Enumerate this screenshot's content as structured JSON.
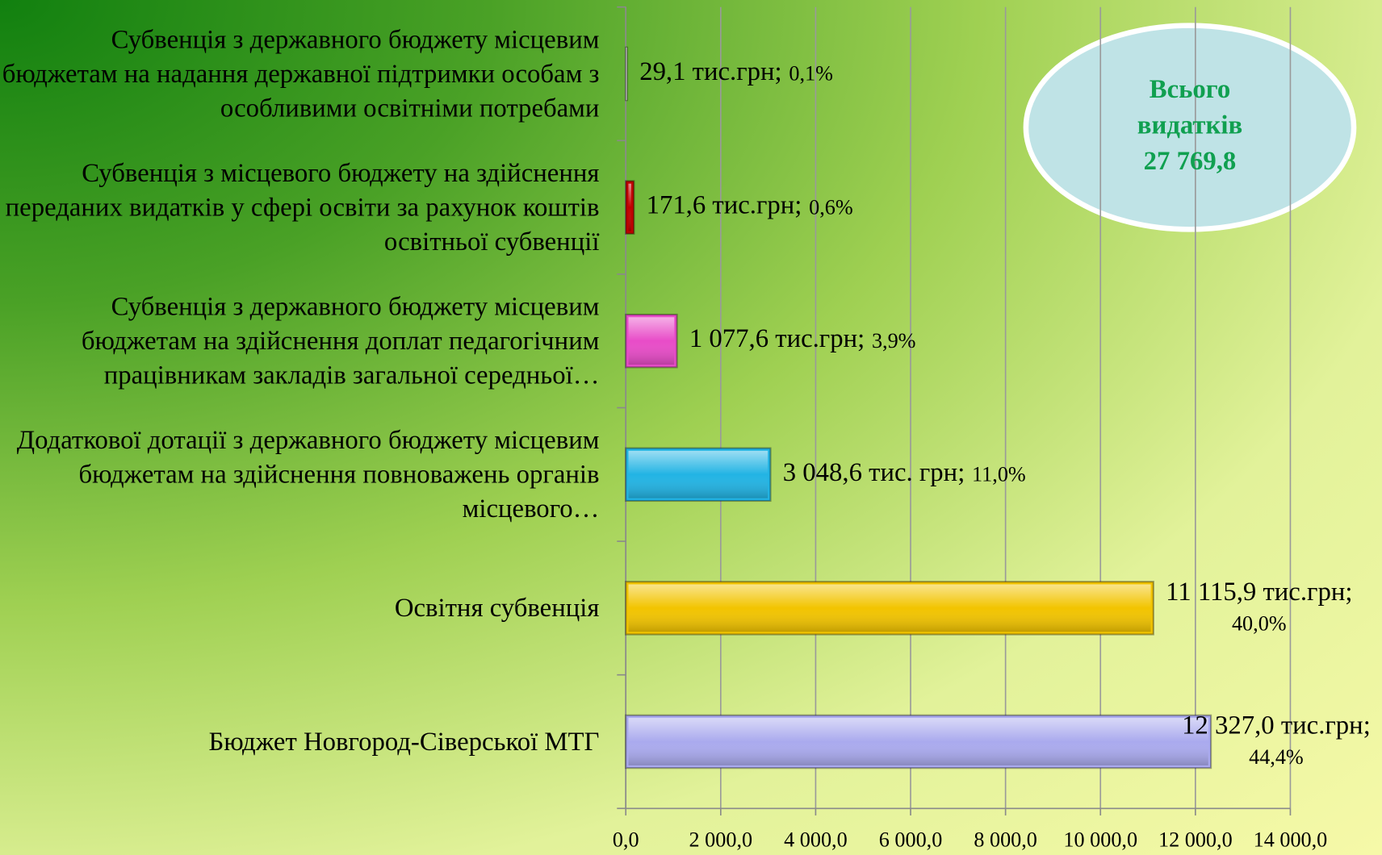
{
  "chart_data": {
    "type": "hbar",
    "categories": [
      "Субвенція з державного бюджету місцевим бюджетам на надання державної підтримки особам з особливими освітніми потребами",
      "Субвенція з місцевого бюджету на здійснення переданих видатків у сфері освіти за рахунок коштів освітньої субвенції",
      "Субвенція з державного бюджету місцевим бюджетам на здійснення доплат педагогічним працівникам закладів загальної середньої…",
      "Додаткової дотації з державного бюджету місцевим бюджетам на здійснення повноважень органів місцевого…",
      "Освітня субвенція",
      "Бюджет Новгород-Сіверської МТГ"
    ],
    "values": [
      29.1,
      171.6,
      1077.6,
      3048.6,
      11115.9,
      12327.0
    ],
    "value_labels": [
      "29,1 тис.грн;",
      "171,6 тис.грн;",
      "1 077,6 тис.грн;",
      "3 048,6 тис. грн;",
      "11 115,9 тис.грн;",
      "12 327,0 тис.грн;"
    ],
    "share_labels": [
      "0,1%",
      "0,6%",
      "3,9%",
      "11,0%",
      "40,0%",
      "44,4%"
    ],
    "colors": [
      "#f4f4f4",
      "#c00000",
      "#e84cc8",
      "#22b4e4",
      "#f2c400",
      "#aaaaee"
    ],
    "xlim": [
      0,
      14000
    ],
    "xticks": [
      {
        "value": 0,
        "label": "0,0"
      },
      {
        "value": 2000,
        "label": "2 000,0"
      },
      {
        "value": 4000,
        "label": "4 000,0"
      },
      {
        "value": 6000,
        "label": "6 000,0"
      },
      {
        "value": 8000,
        "label": "8 000,0"
      },
      {
        "value": 10000,
        "label": "10 000,0"
      },
      {
        "value": 12000,
        "label": "12 000,0"
      },
      {
        "value": 14000,
        "label": "14 000,0"
      }
    ],
    "grid": true,
    "annotation": [
      "Всього",
      "видатків",
      "27 769,8"
    ]
  }
}
